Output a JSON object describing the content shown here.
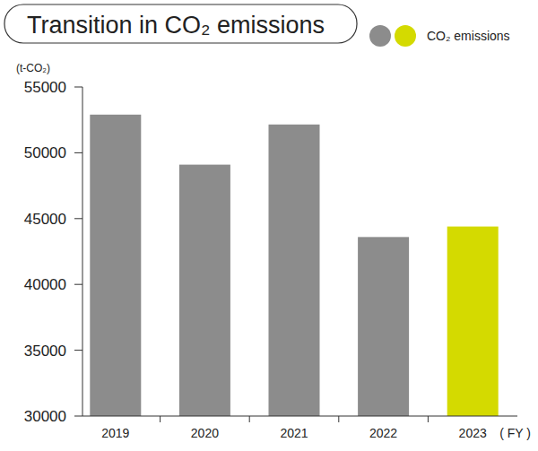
{
  "chart_data": {
    "type": "bar",
    "title": "Transition in CO₂ emissions",
    "y_label": "(t-CO₂)",
    "x_label": "( FY )",
    "categories": [
      "2019",
      "2020",
      "2021",
      "2022",
      "2023"
    ],
    "series": [
      {
        "name": "CO₂ emissions",
        "colors": [
          "#8c8c8c",
          "#8c8c8c",
          "#8c8c8c",
          "#8c8c8c",
          "#d4da00"
        ],
        "values": [
          52900,
          49100,
          52150,
          43600,
          44400
        ]
      }
    ],
    "ylim": [
      30000,
      55000
    ],
    "yticks": [
      30000,
      35000,
      40000,
      45000,
      50000,
      55000
    ],
    "grid": false
  }
}
